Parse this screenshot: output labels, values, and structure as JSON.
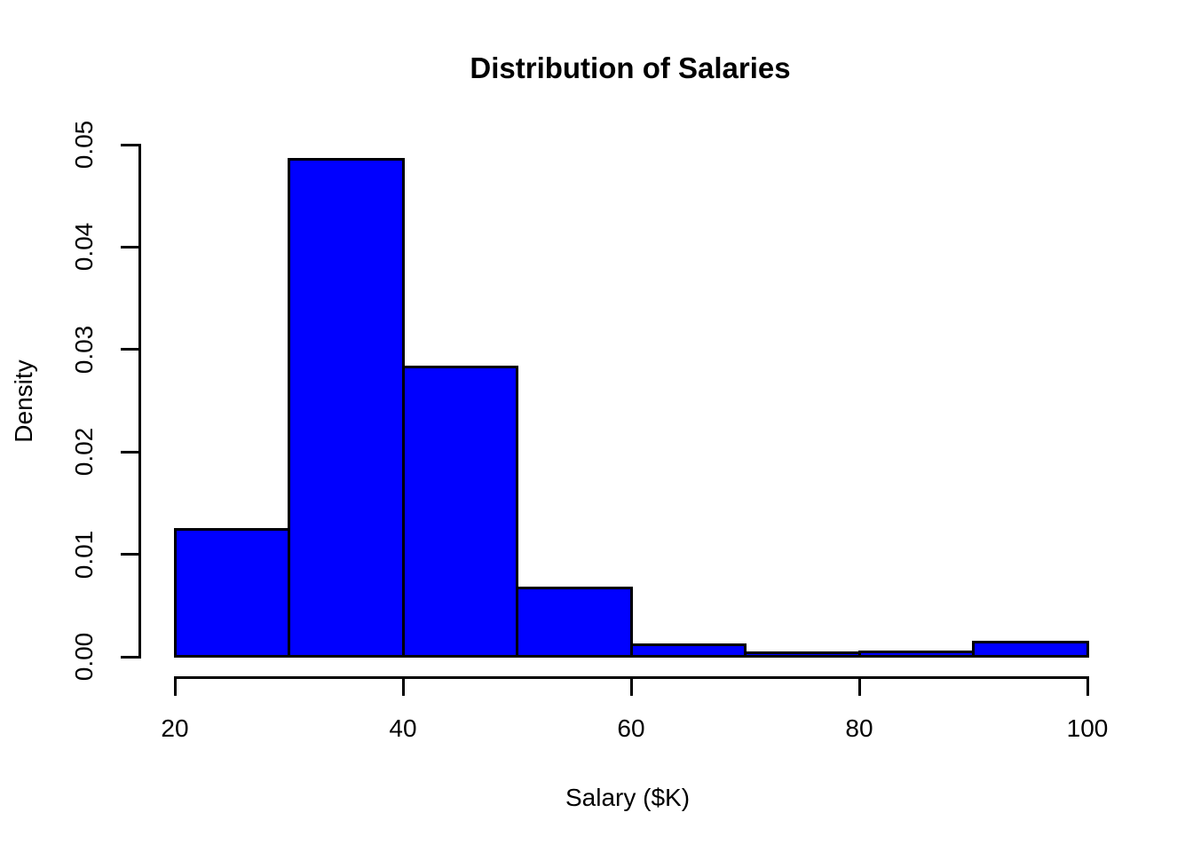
{
  "chart_data": {
    "type": "bar",
    "subtype": "histogram",
    "title": "Distribution of Salaries",
    "xlabel": "Salary ($K)",
    "ylabel": "Density",
    "xlim": [
      20,
      100
    ],
    "ylim": [
      0,
      0.05
    ],
    "bin_width": 10,
    "bins": [
      {
        "range": [
          20,
          30
        ],
        "density": 0.0124
      },
      {
        "range": [
          30,
          40
        ],
        "density": 0.0486
      },
      {
        "range": [
          40,
          50
        ],
        "density": 0.0283
      },
      {
        "range": [
          50,
          60
        ],
        "density": 0.0067
      },
      {
        "range": [
          60,
          70
        ],
        "density": 0.0012
      },
      {
        "range": [
          70,
          80
        ],
        "density": 0.0004
      },
      {
        "range": [
          80,
          90
        ],
        "density": 0.0005
      },
      {
        "range": [
          90,
          100
        ],
        "density": 0.0014
      }
    ],
    "x_ticks": [
      {
        "value": 20,
        "label": "20"
      },
      {
        "value": 40,
        "label": "40"
      },
      {
        "value": 60,
        "label": "60"
      },
      {
        "value": 80,
        "label": "80"
      },
      {
        "value": 100,
        "label": "100"
      }
    ],
    "y_ticks": [
      {
        "value": 0.0,
        "label": "0.00"
      },
      {
        "value": 0.01,
        "label": "0.01"
      },
      {
        "value": 0.02,
        "label": "0.02"
      },
      {
        "value": 0.03,
        "label": "0.03"
      },
      {
        "value": 0.04,
        "label": "0.04"
      },
      {
        "value": 0.05,
        "label": "0.05"
      }
    ],
    "grid": false,
    "legend": null,
    "colors": {
      "bar_fill": "#0000FF",
      "bar_border": "#000000",
      "axis": "#000000",
      "text": "#000000",
      "background": "#FFFFFF"
    }
  }
}
